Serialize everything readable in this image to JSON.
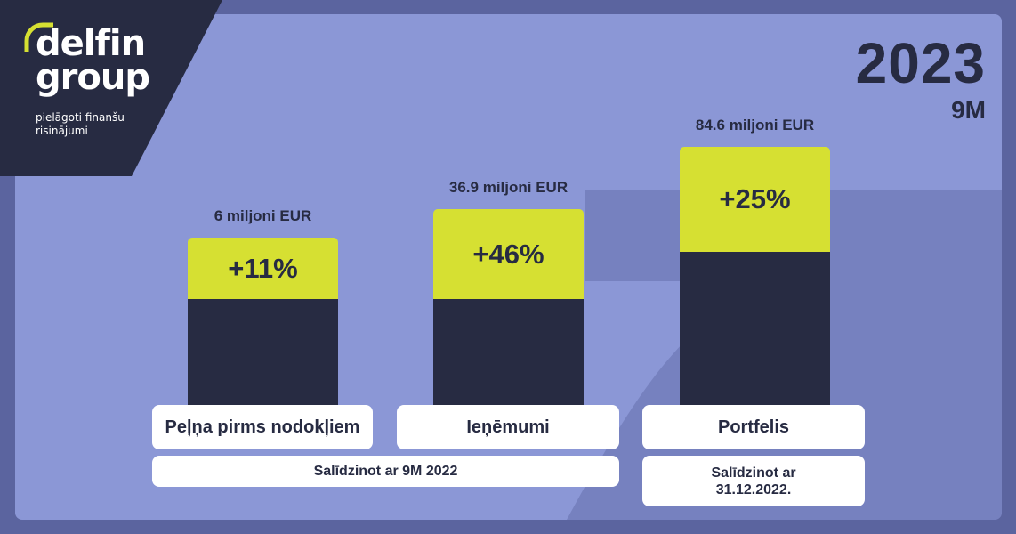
{
  "brand": {
    "logo_text": "delfin\ngroup",
    "tagline": "pielāgoti finanšu\nrisinājumi"
  },
  "header": {
    "year": "2023",
    "period": "9M"
  },
  "colors": {
    "background": "#5b649f",
    "panel": "#8b97d6",
    "dark": "#272b42",
    "accent": "#d6e032",
    "card": "#ffffff"
  },
  "chart_data": {
    "type": "bar",
    "categories": [
      "Peļņa pirms nodokļiem",
      "Ieņēmumi",
      "Portfelis"
    ],
    "values": [
      6,
      36.9,
      84.6
    ],
    "unit": "miljoni EUR",
    "value_labels": [
      "6 miljoni EUR",
      "36.9 miljoni EUR",
      "84.6 miljoni EUR"
    ],
    "growth_labels": [
      "+11%",
      "+46%",
      "+25%"
    ],
    "growth_values": [
      11,
      46,
      25
    ],
    "comparisons": [
      {
        "text": "Salīdzinot ar 9M 2022",
        "applies_to": [
          "Peļņa pirms nodokļiem",
          "Ieņēmumi"
        ]
      },
      {
        "text": "Salīdzinot ar\n31.12.2022.",
        "applies_to": [
          "Portfelis"
        ]
      }
    ]
  }
}
